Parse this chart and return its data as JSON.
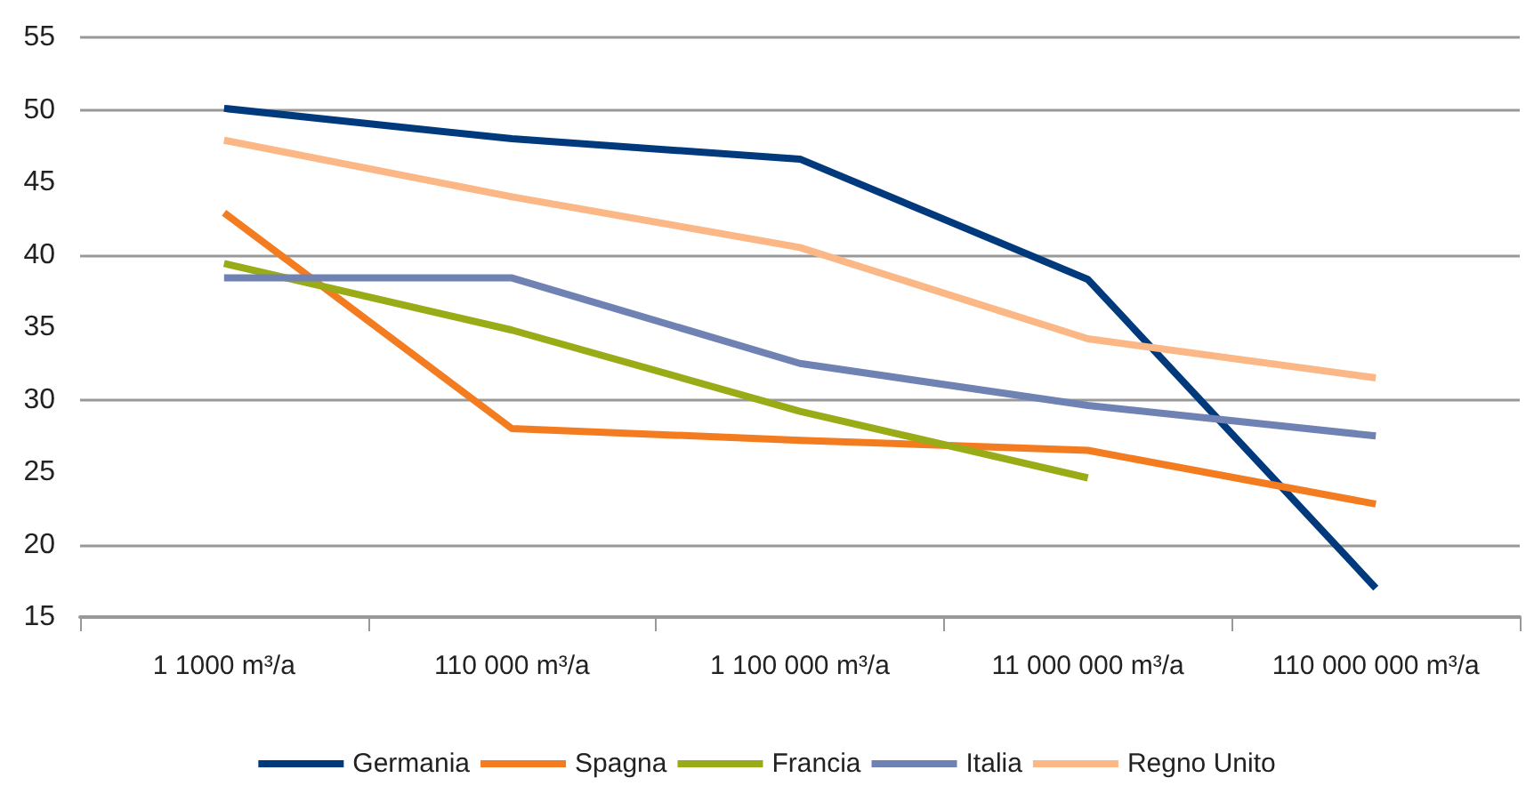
{
  "chart_data": {
    "type": "line",
    "categories": [
      "1 1000 m³/a",
      "110 000 m³/a",
      "1 100 000 m³/a",
      "11 000 000 m³/a",
      "110 000 000 m³/a"
    ],
    "series": [
      {
        "name": "Germania",
        "color": "#003a7d",
        "values": [
          50.1,
          48,
          46.6,
          38.3,
          17
        ]
      },
      {
        "name": "Spagna",
        "color": "#f47c20",
        "values": [
          42.9,
          28,
          27.2,
          26.5,
          22.8
        ]
      },
      {
        "name": "Francia",
        "color": "#9aab18",
        "values": [
          39.4,
          34.8,
          29.2,
          24.6,
          null
        ]
      },
      {
        "name": "Italia",
        "color": "#6f82b3",
        "values": [
          38.4,
          38.4,
          32.5,
          29.6,
          27.5
        ]
      },
      {
        "name": "Regno Unito",
        "color": "#fbb785",
        "values": [
          47.9,
          44,
          40.5,
          34.2,
          31.5
        ]
      }
    ],
    "ylim": [
      15,
      55
    ],
    "yticks": [
      15,
      20,
      25,
      30,
      35,
      40,
      45,
      50,
      55
    ],
    "grid": "y",
    "legend": "bottom",
    "marker": "none",
    "line_style": "solid"
  }
}
